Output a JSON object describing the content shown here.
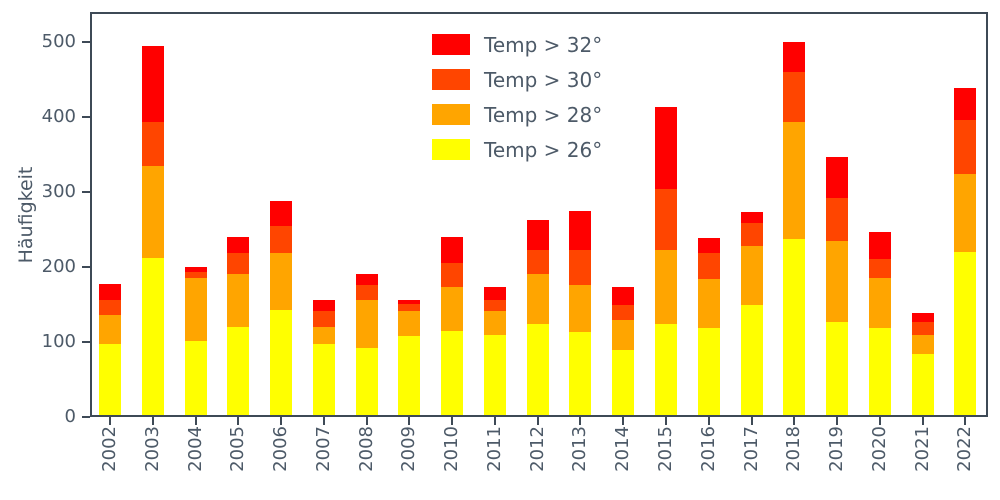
{
  "chart_data": {
    "type": "bar",
    "stacked": true,
    "title": "",
    "xlabel": "",
    "ylabel": "Häufigkeit",
    "ylim": [
      0,
      540
    ],
    "yticks": [
      0,
      100,
      200,
      300,
      400,
      500
    ],
    "grid": false,
    "legend_position": "upper-center-left",
    "categories": [
      "2002",
      "2003",
      "2004",
      "2005",
      "2006",
      "2007",
      "2008",
      "2009",
      "2010",
      "2011",
      "2012",
      "2013",
      "2014",
      "2015",
      "2016",
      "2017",
      "2018",
      "2019",
      "2020",
      "2021",
      "2022"
    ],
    "series": [
      {
        "name": "Temp > 26°",
        "color": "#ffff00",
        "values": [
          95,
          212,
          100,
          118,
          142,
          95,
          90,
          107,
          113,
          108,
          122,
          112,
          87,
          122,
          117,
          148,
          237,
          125,
          117,
          82,
          220
        ]
      },
      {
        "name": "Temp > 28°",
        "color": "#ffa500",
        "values": [
          40,
          123,
          85,
          72,
          76,
          23,
          65,
          33,
          59,
          32,
          68,
          63,
          41,
          100,
          66,
          80,
          158,
          110,
          68,
          26,
          105
        ]
      },
      {
        "name": "Temp > 30°",
        "color": "#ff4500",
        "values": [
          20,
          60,
          8,
          28,
          37,
          22,
          20,
          10,
          33,
          15,
          32,
          47,
          20,
          83,
          35,
          30,
          67,
          57,
          25,
          17,
          72
        ]
      },
      {
        "name": "Temp > 32°",
        "color": "#ff0000",
        "values": [
          22,
          102,
          7,
          22,
          33,
          15,
          15,
          5,
          35,
          17,
          40,
          53,
          24,
          110,
          20,
          15,
          41,
          55,
          36,
          13,
          43
        ]
      }
    ],
    "legend": [
      {
        "label": "Temp > 32°",
        "color": "#ff0000"
      },
      {
        "label": "Temp > 30°",
        "color": "#ff4500"
      },
      {
        "label": "Temp > 28°",
        "color": "#ffa500"
      },
      {
        "label": "Temp > 26°",
        "color": "#ffff00"
      }
    ]
  }
}
